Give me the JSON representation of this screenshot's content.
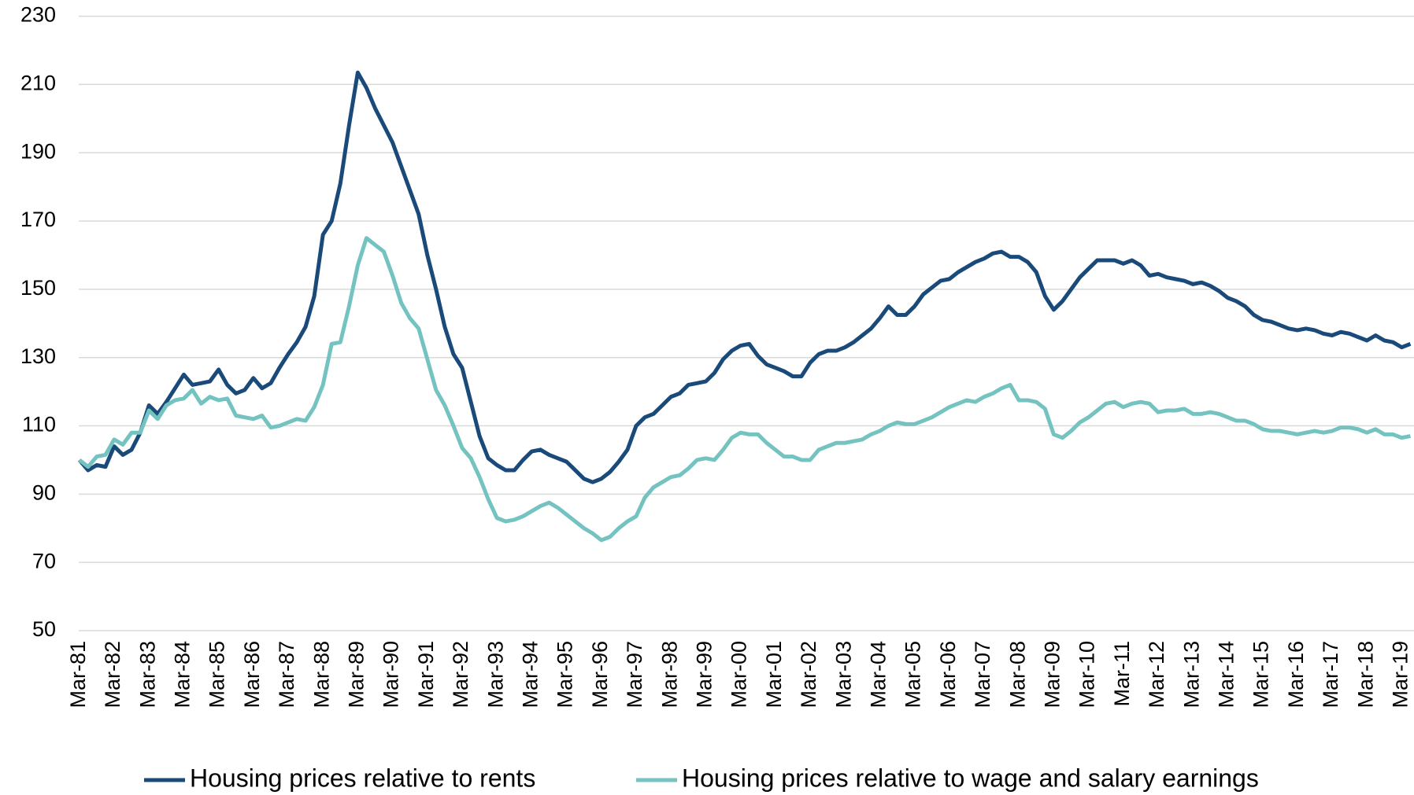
{
  "chart_data": {
    "type": "line",
    "categories": [
      "Mar-81",
      null,
      null,
      null,
      "Mar-82",
      null,
      null,
      null,
      "Mar-83",
      null,
      null,
      null,
      "Mar-84",
      null,
      null,
      null,
      "Mar-85",
      null,
      null,
      null,
      "Mar-86",
      null,
      null,
      null,
      "Mar-87",
      null,
      null,
      null,
      "Mar-88",
      null,
      null,
      null,
      "Mar-89",
      null,
      null,
      null,
      "Mar-90",
      null,
      null,
      null,
      "Mar-91",
      null,
      null,
      null,
      "Mar-92",
      null,
      null,
      null,
      "Mar-93",
      null,
      null,
      null,
      "Mar-94",
      null,
      null,
      null,
      "Mar-95",
      null,
      null,
      null,
      "Mar-96",
      null,
      null,
      null,
      "Mar-97",
      null,
      null,
      null,
      "Mar-98",
      null,
      null,
      null,
      "Mar-99",
      null,
      null,
      null,
      "Mar-00",
      null,
      null,
      null,
      "Mar-01",
      null,
      null,
      null,
      "Mar-02",
      null,
      null,
      null,
      "Mar-03",
      null,
      null,
      null,
      "Mar-04",
      null,
      null,
      null,
      "Mar-05",
      null,
      null,
      null,
      "Mar-06",
      null,
      null,
      null,
      "Mar-07",
      null,
      null,
      null,
      "Mar-08",
      null,
      null,
      null,
      "Mar-09",
      null,
      null,
      null,
      "Mar-10",
      null,
      null,
      null,
      "Mar-11",
      null,
      null,
      null,
      "Mar-12",
      null,
      null,
      null,
      "Mar-13",
      null,
      null,
      null,
      "Mar-14",
      null,
      null,
      null,
      "Mar-15",
      null,
      null,
      null,
      "Mar-16",
      null,
      null,
      null,
      "Mar-17",
      null,
      null,
      null,
      "Mar-18",
      null,
      null,
      null,
      "Mar-19",
      null
    ],
    "series": [
      {
        "name": "Housing prices relative to rents",
        "color": "#1a4a7a",
        "values": [
          100,
          97,
          98.5,
          98,
          104,
          101.5,
          103,
          108,
          116,
          113.5,
          117,
          121,
          125,
          122,
          122.5,
          123,
          126.5,
          122,
          119.5,
          120.5,
          124,
          121,
          122.5,
          127,
          131,
          134.5,
          139,
          148,
          166,
          170,
          181,
          198,
          213.5,
          209,
          203,
          198,
          193,
          186,
          179,
          172,
          160,
          150,
          139,
          131,
          127,
          117,
          107,
          100.5,
          98.5,
          97,
          97,
          100,
          102.5,
          103,
          101.5,
          100.5,
          99.5,
          97,
          94.5,
          93.5,
          94.5,
          96.5,
          99.5,
          103,
          110,
          112.5,
          113.5,
          116,
          118.5,
          119.5,
          122,
          122.5,
          123,
          125.5,
          129.5,
          132,
          133.5,
          134,
          130.5,
          128,
          127,
          126,
          124.5,
          124.5,
          128.5,
          131,
          132,
          132,
          133,
          134.5,
          136.5,
          138.5,
          141.5,
          145,
          142.5,
          142.5,
          145,
          148.5,
          150.5,
          152.5,
          153,
          155,
          156.5,
          158,
          159,
          160.5,
          161,
          159.5,
          159.5,
          158,
          155,
          148,
          144,
          146.5,
          150,
          153.5,
          156,
          158.5,
          158.5,
          158.5,
          157.5,
          158.5,
          157,
          154,
          154.5,
          153.5,
          153,
          152.5,
          151.5,
          152,
          151,
          149.5,
          147.5,
          146.5,
          145,
          142.5,
          141,
          140.5,
          139.5,
          138.5,
          138,
          138.5,
          138,
          137,
          136.5,
          137.5,
          137,
          136,
          135,
          136.5,
          135,
          134.5,
          133,
          134
        ]
      },
      {
        "name": "Housing prices relative to wage and salary earnings",
        "color": "#74c3c1",
        "values": [
          100,
          98,
          101,
          101.5,
          106,
          104.5,
          108,
          108,
          114.5,
          112,
          116,
          117.5,
          118,
          120.5,
          116.5,
          118.5,
          117.5,
          118,
          113,
          112.5,
          112,
          113,
          109.5,
          110,
          111,
          112,
          111.5,
          115.5,
          122,
          134,
          134.5,
          145,
          157,
          165,
          163,
          161,
          154,
          146,
          141.5,
          138.5,
          129.5,
          120.5,
          116,
          110,
          103.5,
          100.5,
          95,
          88.5,
          83,
          82,
          82.5,
          83.5,
          85,
          86.5,
          87.5,
          86,
          84,
          82,
          80,
          78.5,
          76.5,
          77.5,
          80,
          82,
          83.5,
          89,
          92,
          93.5,
          95,
          95.5,
          97.5,
          100,
          100.5,
          100,
          103,
          106.5,
          108,
          107.5,
          107.5,
          105,
          103,
          101,
          101,
          100,
          100,
          103,
          104,
          105,
          105,
          105.5,
          106,
          107.5,
          108.5,
          110,
          111,
          110.5,
          110.5,
          111.5,
          112.5,
          114,
          115.5,
          116.5,
          117.5,
          117,
          118.5,
          119.5,
          121,
          122,
          117.5,
          117.5,
          117,
          115,
          107.5,
          106.5,
          108.5,
          111,
          112.5,
          114.5,
          116.5,
          117,
          115.5,
          116.5,
          117,
          116.5,
          114,
          114.5,
          114.5,
          115,
          113.5,
          113.5,
          114,
          113.5,
          112.5,
          111.5,
          111.5,
          110.5,
          109,
          108.5,
          108.5,
          108,
          107.5,
          108,
          108.5,
          108,
          108.5,
          109.5,
          109.5,
          109,
          108,
          109,
          107.5,
          107.5,
          106.5,
          107
        ]
      }
    ],
    "ylim": [
      50,
      230
    ],
    "yticks": [
      50,
      70,
      90,
      110,
      130,
      150,
      170,
      190,
      210,
      230
    ],
    "grid": true,
    "legend": "bottom"
  }
}
